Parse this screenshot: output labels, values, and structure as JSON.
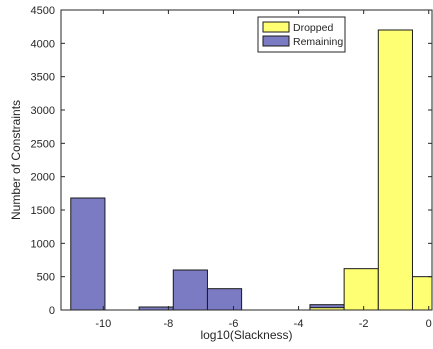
{
  "chart_data": {
    "type": "bar",
    "title": "",
    "xlabel": "log10(Slackness)",
    "ylabel": "Number of Constraints",
    "xlim": [
      -11.3,
      0.1
    ],
    "ylim": [
      0,
      4500
    ],
    "xticks": [
      -10,
      -8,
      -6,
      -4,
      -2,
      0
    ],
    "xtick_labels": [
      "-10",
      "-8",
      "-6",
      "-4",
      "-2",
      "0"
    ],
    "yticks": [
      0,
      500,
      1000,
      1500,
      2000,
      2500,
      3000,
      3500,
      4000,
      4500
    ],
    "ytick_labels": [
      "0",
      "500",
      "1000",
      "1500",
      "2000",
      "2500",
      "3000",
      "3500",
      "4000",
      "4500"
    ],
    "grid": false,
    "legend_position": "top-right",
    "series": [
      {
        "name": "Remaining",
        "color": "#7b7bc4",
        "bins": [
          {
            "x0": -11.0,
            "x1": -9.95,
            "value": 1680
          },
          {
            "x0": -8.9,
            "x1": -7.85,
            "value": 45
          },
          {
            "x0": -7.85,
            "x1": -6.8,
            "value": 600
          },
          {
            "x0": -6.8,
            "x1": -5.75,
            "value": 320
          },
          {
            "x0": -3.65,
            "x1": -2.6,
            "value": 80
          }
        ]
      },
      {
        "name": "Dropped",
        "color": "#ffff73",
        "bins": [
          {
            "x0": -3.65,
            "x1": -2.6,
            "value": 35
          },
          {
            "x0": -2.6,
            "x1": -1.55,
            "value": 620
          },
          {
            "x0": -1.55,
            "x1": -0.5,
            "value": 4200
          },
          {
            "x0": -0.5,
            "x1": 0.1,
            "value": 500
          }
        ]
      }
    ]
  }
}
